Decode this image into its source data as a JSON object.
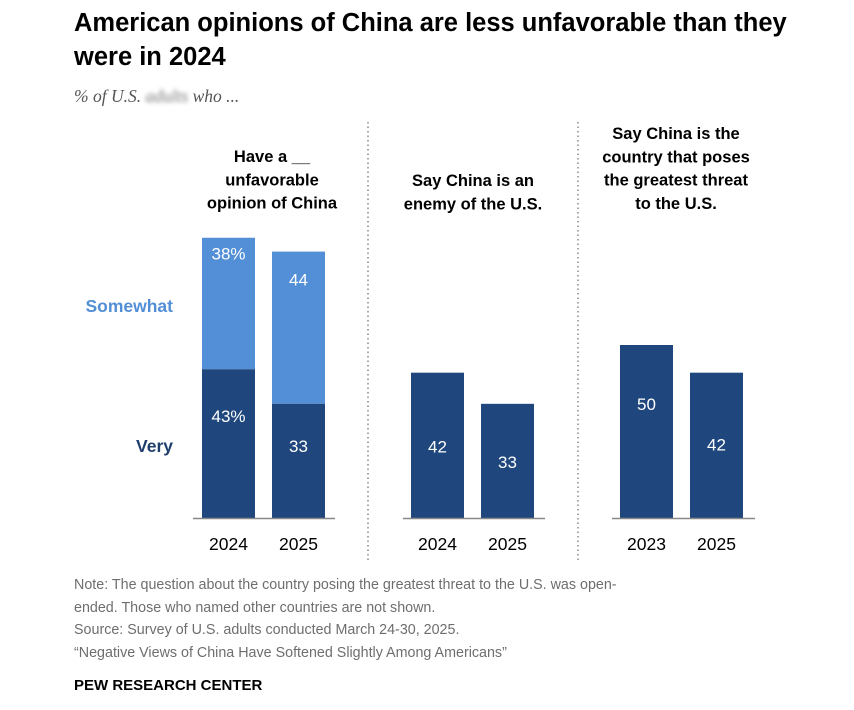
{
  "title": "American opinions of China are less unfavorable than they were in 2024",
  "subtitle": {
    "prefix": "% of U.S. ",
    "obscured": "adults",
    "suffix": " who ..."
  },
  "colors": {
    "very": "#1f477d",
    "somewhat": "#528fd6",
    "legend_very": "#1f3e6e",
    "legend_somewhat": "#528fd6",
    "axis": "#888888",
    "divider": "#777777"
  },
  "chart_data": [
    {
      "type": "bar",
      "stacked": true,
      "title": [
        "Have a __",
        "unfavorable",
        "opinion of China"
      ],
      "categories": [
        "2024",
        "2025"
      ],
      "series": [
        {
          "name": "Very",
          "values": [
            43,
            33
          ],
          "labels": [
            "43%",
            "33"
          ]
        },
        {
          "name": "Somewhat",
          "values": [
            38,
            44
          ],
          "labels": [
            "38%",
            "44"
          ]
        }
      ],
      "legend": [
        "Somewhat",
        "Very"
      ],
      "legend_placement": "left"
    },
    {
      "type": "bar",
      "title": [
        "Say China is an",
        "enemy of the U.S."
      ],
      "categories": [
        "2024",
        "2025"
      ],
      "values": [
        42,
        33
      ],
      "labels": [
        "42",
        "33"
      ]
    },
    {
      "type": "bar",
      "title": [
        "Say China is the",
        "country that poses",
        "the greatest threat",
        "to the U.S."
      ],
      "categories": [
        "2023",
        "2025"
      ],
      "values": [
        50,
        42
      ],
      "labels": [
        "50",
        "42"
      ]
    }
  ],
  "notes": [
    "Note: The question about the country posing the greatest threat to the U.S. was open-",
    "ended. Those who named other countries are not shown.",
    "Source: Survey of U.S. adults conducted March 24-30, 2025.",
    "“Negative Views of China Have Softened Slightly Among Americans”"
  ],
  "source_org": "PEW RESEARCH CENTER"
}
